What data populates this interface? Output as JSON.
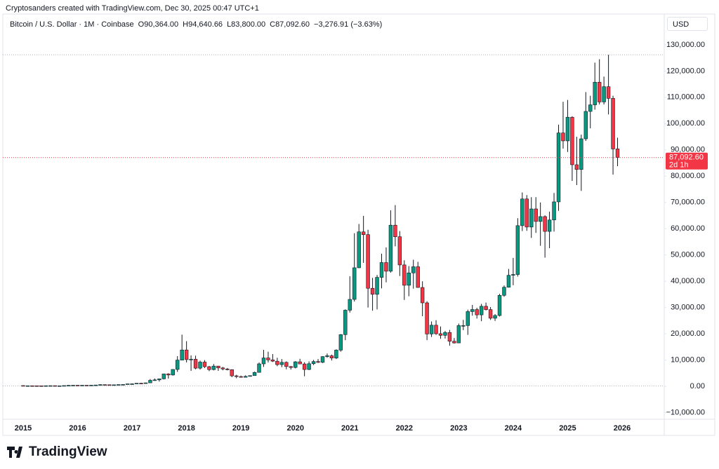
{
  "attribution": "Cryptosanders created with TradingView.com, Dec 30, 2025 00:47 UTC+1",
  "logo": "TradingView",
  "chart_data": {
    "type": "candlestick",
    "header": {
      "symbol": "Bitcoin / U.S. Dollar · 1M · Coinbase",
      "open": "O90,364.00",
      "high": "H94,640.66",
      "low": "L83,800.00",
      "close": "C87,092.60",
      "change": "−3,276.91 (−3.63%)"
    },
    "currency": "USD",
    "up_color": "#089981",
    "down_color": "#f23645",
    "categories": [
      "2015",
      null,
      null,
      null,
      null,
      null,
      null,
      null,
      null,
      null,
      null,
      null,
      "2016",
      null,
      null,
      null,
      null,
      null,
      null,
      null,
      null,
      null,
      null,
      null,
      "2017",
      null,
      null,
      null,
      null,
      null,
      null,
      null,
      null,
      null,
      null,
      null,
      "2018",
      null,
      null,
      null,
      null,
      null,
      null,
      null,
      null,
      null,
      null,
      null,
      "2019",
      null,
      null,
      null,
      null,
      null,
      null,
      null,
      null,
      null,
      null,
      null,
      "2020",
      null,
      null,
      null,
      null,
      null,
      null,
      null,
      null,
      null,
      null,
      null,
      "2021",
      null,
      null,
      null,
      null,
      null,
      null,
      null,
      null,
      null,
      null,
      null,
      "2022",
      null,
      null,
      null,
      null,
      null,
      null,
      null,
      null,
      null,
      null,
      null,
      "2023",
      null,
      null,
      null,
      null,
      null,
      null,
      null,
      null,
      null,
      null,
      null,
      "2024",
      null,
      null,
      null,
      null,
      null,
      null,
      null,
      null,
      null,
      null,
      null,
      "2025",
      null,
      null,
      null,
      null,
      null,
      null,
      null,
      null,
      null,
      null,
      null,
      "2026"
    ],
    "open": [
      320,
      217,
      254,
      244,
      236,
      230,
      263,
      284,
      230,
      236,
      314,
      377,
      430,
      368,
      437,
      416,
      448,
      531,
      673,
      624,
      575,
      609,
      701,
      742,
      964,
      970,
      1190,
      1080,
      1350,
      2300,
      2480,
      2870,
      4740,
      4340,
      6450,
      10000,
      13860,
      10200,
      10330,
      6930,
      9240,
      7500,
      6390,
      7730,
      7030,
      6630,
      6370,
      4020,
      3740,
      3460,
      3810,
      4100,
      5320,
      8570,
      10820,
      10090,
      9590,
      8290,
      9150,
      7560,
      7190,
      9350,
      8540,
      6420,
      8630,
      9460,
      9140,
      11350,
      11650,
      10780,
      13800,
      19700,
      28990,
      33110,
      45140,
      58800,
      57750,
      37330,
      35040,
      41490,
      47130,
      43830,
      61350,
      56950,
      46220,
      38480,
      43190,
      45530,
      37640,
      31790,
      19940,
      23290,
      20050,
      19430,
      20490,
      17170,
      16540,
      23140,
      23150,
      28470,
      29250,
      27220,
      30480,
      29230,
      25940,
      26970,
      34650,
      37720,
      42280,
      42580,
      61170,
      71330,
      60640,
      67530,
      62770,
      64620,
      58980,
      63330,
      70220,
      96450,
      93430,
      102430,
      84350,
      82550,
      94210,
      104640,
      107140,
      115760,
      108240,
      114050,
      109600,
      90364,
      null
    ],
    "high": [
      320,
      270,
      300,
      260,
      250,
      270,
      320,
      285,
      245,
      330,
      500,
      470,
      460,
      445,
      440,
      470,
      550,
      780,
      690,
      630,
      620,
      720,
      760,
      980,
      1150,
      1210,
      1350,
      1400,
      2800,
      3000,
      2950,
      4800,
      5000,
      6500,
      11500,
      19700,
      17200,
      11800,
      11700,
      9800,
      10000,
      7800,
      8500,
      7800,
      7400,
      7000,
      6500,
      4400,
      4100,
      4200,
      4150,
      5600,
      9100,
      13900,
      13200,
      12300,
      10900,
      10400,
      9500,
      7750,
      9600,
      10500,
      9200,
      9500,
      10080,
      10400,
      11450,
      12500,
      12100,
      14100,
      19900,
      29300,
      41900,
      58300,
      61800,
      64900,
      59600,
      41300,
      42400,
      50500,
      52900,
      67000,
      69000,
      59100,
      48000,
      45800,
      48200,
      47400,
      40000,
      32400,
      24700,
      25200,
      22800,
      21100,
      21500,
      18400,
      23900,
      25300,
      29200,
      31000,
      29900,
      31400,
      31900,
      30200,
      27500,
      35200,
      38400,
      44700,
      48900,
      64000,
      73800,
      72800,
      72000,
      72000,
      70000,
      65100,
      66500,
      73600,
      99600,
      108300,
      109000,
      102800,
      95000,
      95800,
      112000,
      110600,
      123200,
      124500,
      117900,
      126200,
      110600,
      94640.66,
      null
    ],
    "low": [
      170,
      210,
      240,
      215,
      225,
      220,
      255,
      190,
      225,
      235,
      300,
      350,
      350,
      365,
      400,
      410,
      440,
      520,
      600,
      470,
      590,
      600,
      690,
      740,
      750,
      920,
      890,
      1050,
      1350,
      2100,
      1830,
      2650,
      2950,
      4100,
      5500,
      10000,
      9100,
      5900,
      6500,
      6400,
      7000,
      5800,
      6100,
      5900,
      6100,
      6100,
      3500,
      3100,
      3350,
      3400,
      3700,
      4050,
      5300,
      7400,
      9100,
      9300,
      7700,
      7300,
      6500,
      6400,
      6850,
      8450,
      3850,
      6200,
      8100,
      8900,
      8900,
      10900,
      9850,
      10400,
      13200,
      17600,
      28100,
      32300,
      45000,
      47000,
      30000,
      28800,
      29300,
      37300,
      39600,
      43300,
      53300,
      42000,
      32900,
      34300,
      37200,
      37600,
      26700,
      17600,
      18800,
      19600,
      18100,
      18200,
      15500,
      16300,
      16500,
      21400,
      19600,
      26900,
      25800,
      24800,
      28900,
      25300,
      24900,
      26600,
      34100,
      37600,
      38500,
      41800,
      59100,
      59200,
      56500,
      58400,
      53500,
      49000,
      52600,
      58900,
      66800,
      90500,
      89200,
      78200,
      76600,
      74400,
      93400,
      98200,
      105300,
      107300,
      107300,
      103500,
      80600,
      83800,
      null
    ],
    "close": [
      217,
      254,
      244,
      236,
      230,
      263,
      284,
      230,
      236,
      314,
      377,
      430,
      368,
      437,
      416,
      448,
      531,
      673,
      624,
      575,
      609,
      701,
      742,
      964,
      970,
      1190,
      1080,
      1350,
      2300,
      2480,
      2870,
      4740,
      4340,
      6450,
      10000,
      13860,
      10200,
      10330,
      6930,
      9240,
      7500,
      6390,
      7730,
      7030,
      6630,
      6370,
      4020,
      3740,
      3460,
      3810,
      4100,
      5320,
      8570,
      10820,
      10090,
      9590,
      8290,
      9150,
      7560,
      7190,
      9350,
      8540,
      6420,
      8630,
      9460,
      9140,
      11350,
      11650,
      10780,
      13800,
      19700,
      28990,
      33110,
      45140,
      58800,
      57750,
      37330,
      35040,
      41490,
      47130,
      43830,
      61350,
      56950,
      46220,
      38480,
      43190,
      45530,
      37640,
      31790,
      19940,
      23290,
      20050,
      19430,
      20490,
      17170,
      16540,
      23140,
      23150,
      28470,
      29250,
      27220,
      30480,
      29230,
      25940,
      26970,
      34650,
      37720,
      42280,
      42580,
      61170,
      71330,
      60640,
      67530,
      62770,
      64620,
      58980,
      63330,
      70220,
      96450,
      93430,
      102430,
      84350,
      82550,
      94210,
      104640,
      107140,
      115760,
      108240,
      114050,
      109600,
      90360,
      87092.6,
      null
    ],
    "last_price": {
      "value": 87092.6,
      "label": "87,092.60"
    },
    "countdown": "2d 1h",
    "range_high": 126200,
    "range_low": 170,
    "ylim": [
      -12500,
      133700
    ],
    "yticks": [
      {
        "value": -10000,
        "label": "−10,000.00"
      },
      {
        "value": 0,
        "label": "0.00"
      },
      {
        "value": 10000,
        "label": "10,000.00"
      },
      {
        "value": 20000,
        "label": "20,000.00"
      },
      {
        "value": 30000,
        "label": "30,000.00"
      },
      {
        "value": 40000,
        "label": "40,000.00"
      },
      {
        "value": 50000,
        "label": "50,000.00"
      },
      {
        "value": 60000,
        "label": "60,000.00"
      },
      {
        "value": 70000,
        "label": "70,000.00"
      },
      {
        "value": 80000,
        "label": "80,000.00"
      },
      {
        "value": 90000,
        "label": "90,000.00"
      },
      {
        "value": 100000,
        "label": "100,000.00"
      },
      {
        "value": 110000,
        "label": "110,000.00"
      },
      {
        "value": 120000,
        "label": "120,000.00"
      },
      {
        "value": 130000,
        "label": "130,000.00"
      }
    ]
  }
}
